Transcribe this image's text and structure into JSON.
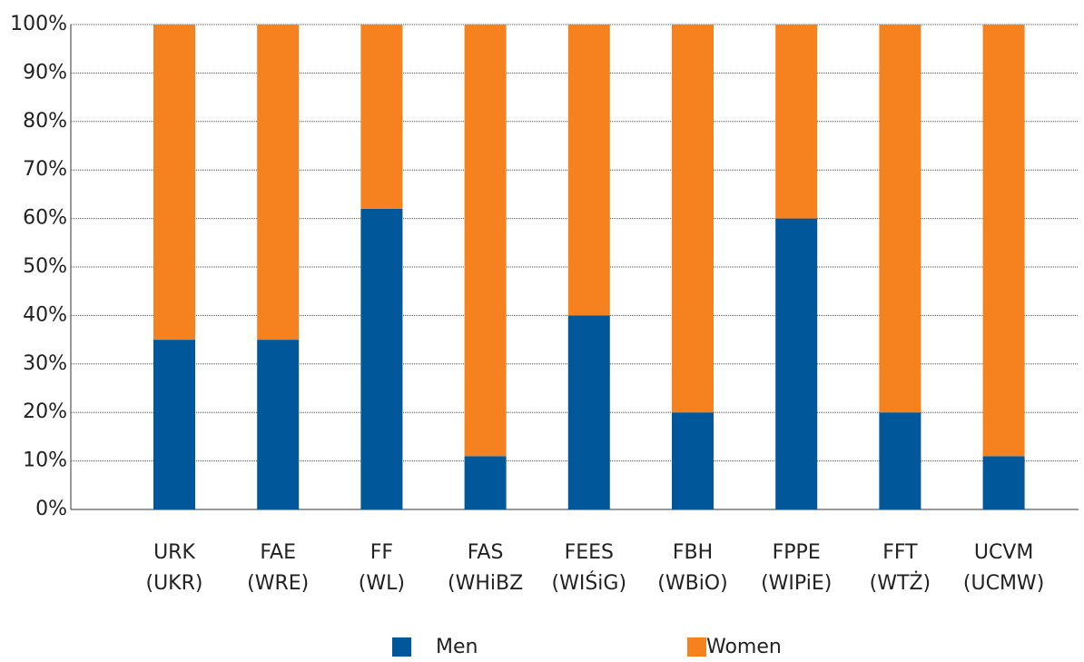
{
  "chart_data": {
    "type": "stacked_bar",
    "categories": [
      [
        "URK",
        "(UKR)"
      ],
      [
        "FAE",
        "(WRE)"
      ],
      [
        "FF",
        "(WL)"
      ],
      [
        "FAS",
        "(WHiBZ"
      ],
      [
        "FEES",
        "(WIŚiG)"
      ],
      [
        "FBH",
        "(WBiO)"
      ],
      [
        "FPPE",
        "(WIPiE)"
      ],
      [
        "FFT",
        "(WTŻ)"
      ],
      [
        "UCVM",
        "(UCMW)"
      ]
    ],
    "series": [
      {
        "name": "Men",
        "color": "#00589b",
        "values": [
          35,
          35,
          62,
          11,
          40,
          20,
          60,
          20,
          11
        ]
      },
      {
        "name": "Women",
        "color": "#f5821f",
        "values": [
          65,
          65,
          38,
          89,
          60,
          80,
          40,
          80,
          89
        ]
      }
    ],
    "ylim": [
      0,
      100
    ],
    "yticks": [
      {
        "value": 0,
        "label": "0%"
      },
      {
        "value": 10,
        "label": "10%"
      },
      {
        "value": 20,
        "label": "20%"
      },
      {
        "value": 30,
        "label": "30%"
      },
      {
        "value": 40,
        "label": "40%"
      },
      {
        "value": 50,
        "label": "50%"
      },
      {
        "value": 60,
        "label": "60%"
      },
      {
        "value": 70,
        "label": "70%"
      },
      {
        "value": 80,
        "label": "80%"
      },
      {
        "value": 90,
        "label": "90%"
      },
      {
        "value": 100,
        "label": "100%"
      }
    ],
    "grid": true,
    "legend": "bottom"
  }
}
